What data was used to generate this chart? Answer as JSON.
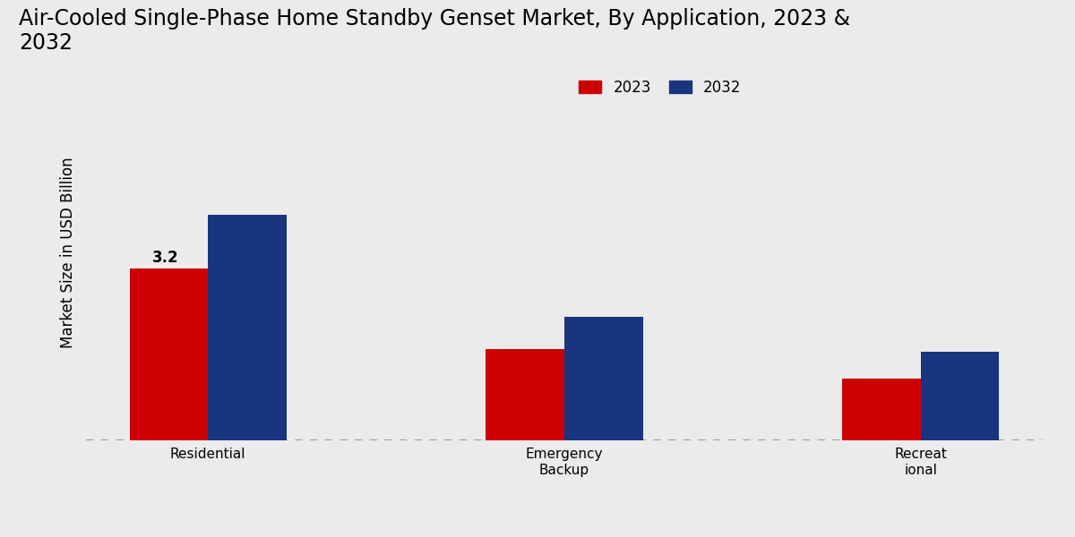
{
  "title": "Air-Cooled Single-Phase Home Standby Genset Market, By Application, 2023 &\n2032",
  "ylabel": "Market Size in USD Billion",
  "categories": [
    "Residential",
    "Emergency\nBackup",
    "Recreat\nional"
  ],
  "values_2023": [
    3.2,
    1.7,
    1.15
  ],
  "values_2032": [
    4.2,
    2.3,
    1.65
  ],
  "color_2023": "#cc0000",
  "color_2032": "#1a3580",
  "annotation_text": "3.2",
  "annotation_bar": 0,
  "background_color_top": "#f0f0f0",
  "background_color_bottom": "#d8d8d8",
  "legend_labels": [
    "2023",
    "2032"
  ],
  "title_fontsize": 17,
  "axis_label_fontsize": 12,
  "tick_fontsize": 11,
  "bar_width": 0.22,
  "ylim": [
    0,
    7.0
  ],
  "bottom_red_bar_height": 8,
  "bottom_red_color": "#cc0000"
}
